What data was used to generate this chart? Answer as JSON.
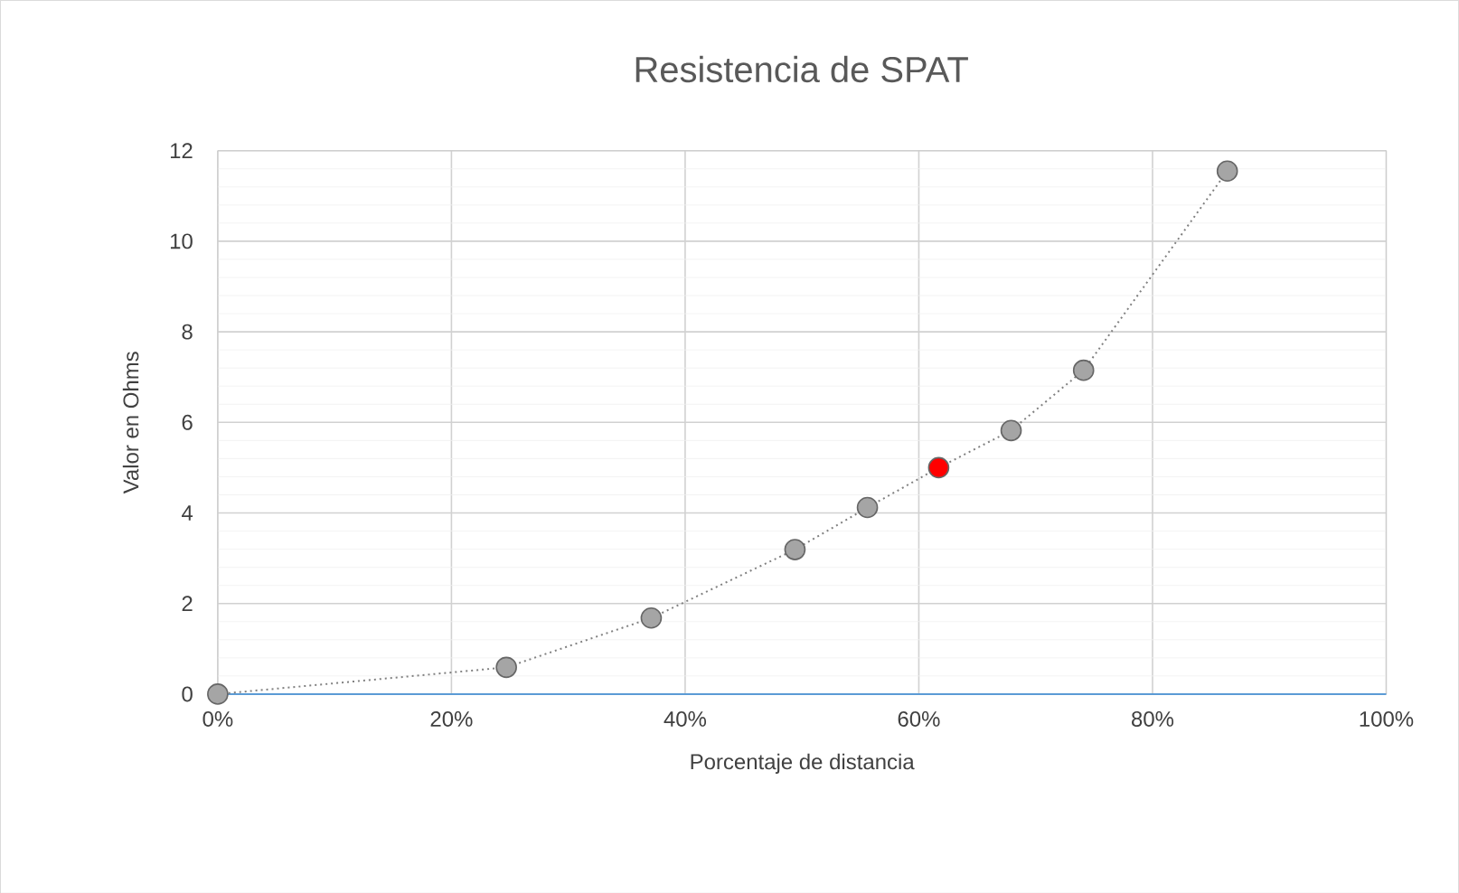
{
  "chart_data": {
    "type": "line",
    "title": "Resistencia de SPAT",
    "xlabel": "Porcentaje de distancia",
    "ylabel": "Valor en Ohms",
    "series": [
      {
        "x": [
          0,
          24.7,
          37.1,
          49.4,
          55.6,
          61.7,
          67.9,
          74.1,
          86.4
        ],
        "values": [
          0,
          0.59,
          1.68,
          3.19,
          4.12,
          5.0,
          5.82,
          7.15,
          11.55
        ],
        "color": "#808080",
        "colors": [
          "#a5a5a5",
          "#a5a5a5",
          "#a5a5a5",
          "#a5a5a5",
          "#a5a5a5",
          "#ff0000",
          "#a5a5a5",
          "#a5a5a5",
          "#a5a5a5"
        ]
      }
    ],
    "xlim": [
      0,
      100
    ],
    "xticks": [
      {
        "value": 0,
        "label": "0%"
      },
      {
        "value": 20,
        "label": "20%"
      },
      {
        "value": 40,
        "label": "40%"
      },
      {
        "value": 60,
        "label": "60%"
      },
      {
        "value": 80,
        "label": "80%"
      },
      {
        "value": 100,
        "label": "100%"
      }
    ],
    "ylim": [
      0,
      12
    ],
    "yticks": [
      0,
      2,
      4,
      6,
      8,
      10,
      12
    ],
    "grid": true,
    "marker": "circle",
    "line_style": "dotted"
  }
}
